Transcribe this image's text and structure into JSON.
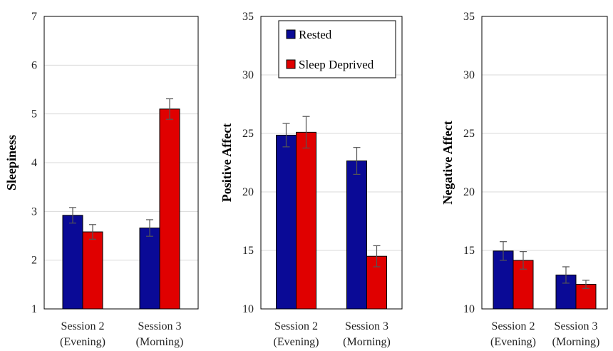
{
  "chart_data": [
    {
      "type": "bar",
      "ylabel": "Sleepiness",
      "ylim": [
        1,
        7
      ],
      "yticks": [
        1,
        2,
        3,
        4,
        5,
        6,
        7
      ],
      "grid": true,
      "categories": [
        {
          "line1": "Session 2",
          "line2": "(Evening)"
        },
        {
          "line1": "Session 3",
          "line2": "(Morning)"
        }
      ],
      "series": [
        {
          "name": "Rested",
          "color": "#0a0a96",
          "values": [
            2.92,
            2.66
          ],
          "errors": [
            0.16,
            0.17
          ]
        },
        {
          "name": "Sleep Deprived",
          "color": "#e00000",
          "values": [
            2.58,
            5.1
          ],
          "errors": [
            0.15,
            0.21
          ]
        }
      ]
    },
    {
      "type": "bar",
      "ylabel": "Positive Affect",
      "ylim": [
        10,
        35
      ],
      "yticks": [
        10,
        15,
        20,
        25,
        30,
        35
      ],
      "grid": true,
      "legend": {
        "placement": "top-right",
        "items": [
          "Rested",
          "Sleep Deprived"
        ]
      },
      "categories": [
        {
          "line1": "Session 2",
          "line2": "(Evening)"
        },
        {
          "line1": "Session 3",
          "line2": "(Morning)"
        }
      ],
      "series": [
        {
          "name": "Rested",
          "color": "#0a0a96",
          "values": [
            24.85,
            22.65
          ],
          "errors": [
            1.0,
            1.15
          ]
        },
        {
          "name": "Sleep Deprived",
          "color": "#e00000",
          "values": [
            25.1,
            14.5
          ],
          "errors": [
            1.35,
            0.9
          ]
        }
      ]
    },
    {
      "type": "bar",
      "ylabel": "Negative Affect",
      "ylim": [
        10,
        35
      ],
      "yticks": [
        10,
        15,
        20,
        25,
        30,
        35
      ],
      "grid": true,
      "categories": [
        {
          "line1": "Session 2",
          "line2": "(Evening)"
        },
        {
          "line1": "Session 3",
          "line2": "(Morning)"
        }
      ],
      "series": [
        {
          "name": "Rested",
          "color": "#0a0a96",
          "values": [
            14.95,
            12.9
          ],
          "errors": [
            0.8,
            0.7
          ]
        },
        {
          "name": "Sleep Deprived",
          "color": "#e00000",
          "values": [
            14.15,
            12.1
          ],
          "errors": [
            0.75,
            0.35
          ]
        }
      ]
    }
  ]
}
